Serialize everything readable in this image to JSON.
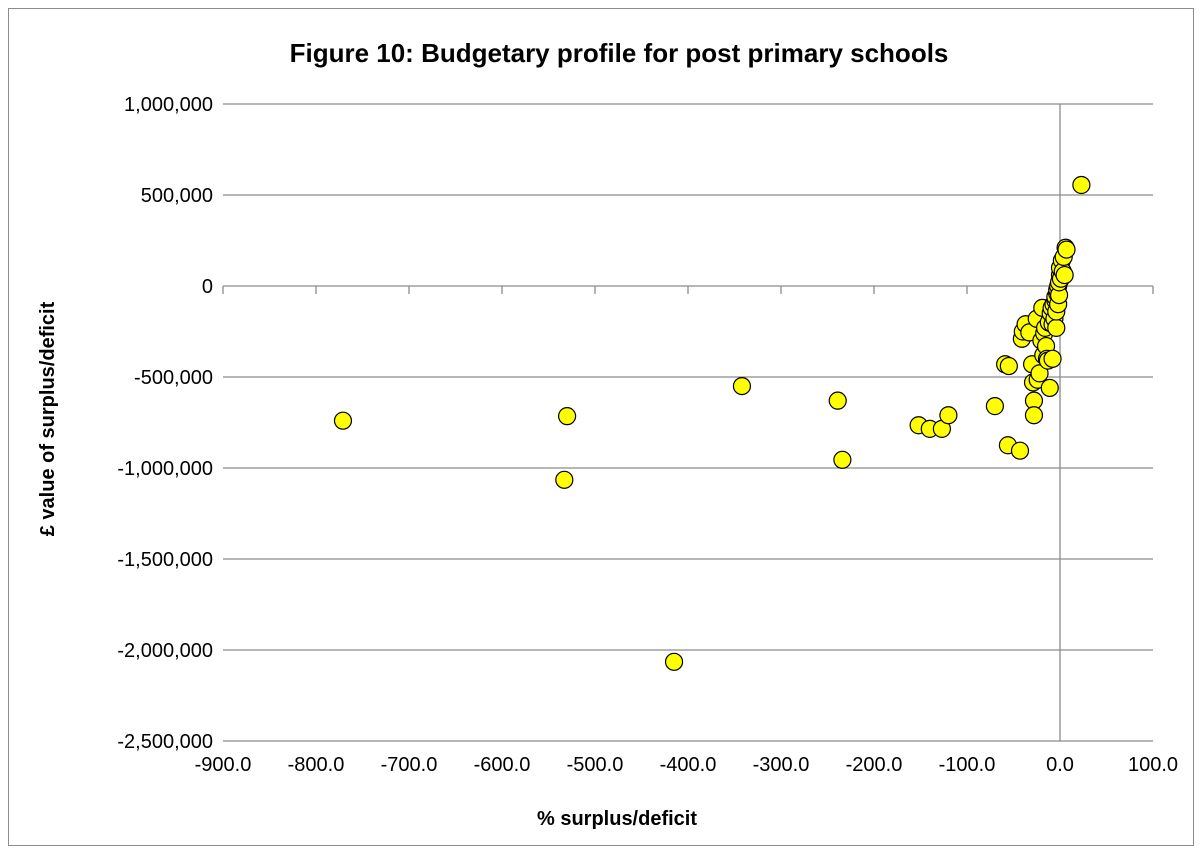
{
  "chart_data": {
    "type": "scatter",
    "title": "Figure 10: Budgetary profile for post primary schools",
    "xlabel": "% surplus/deficit",
    "ylabel": "£ value of surplus/deficit",
    "xlim": [
      -900,
      100
    ],
    "ylim": [
      -2500000,
      1000000
    ],
    "x_ticks": [
      -900,
      -800,
      -700,
      -600,
      -500,
      -400,
      -300,
      -200,
      -100,
      0,
      100
    ],
    "x_tick_labels": [
      "-900.0",
      "-800.0",
      "-700.0",
      "-600.0",
      "-500.0",
      "-400.0",
      "-300.0",
      "-200.0",
      "-100.0",
      "0.0",
      "100.0"
    ],
    "y_ticks": [
      1000000,
      500000,
      0,
      -500000,
      -1000000,
      -1500000,
      -2000000,
      -2500000
    ],
    "y_tick_labels": [
      "1,000,000",
      "500,000",
      "0",
      "-500,000",
      "-1,000,000",
      "-1,500,000",
      "-2,000,000",
      "-2,500,000"
    ],
    "grid": "horizontal",
    "legend": "none",
    "marker_color": "#ffff00",
    "marker_edge_color": "#000000",
    "series": [
      {
        "points": [
          [
            -771,
            -740000
          ],
          [
            -533,
            -1065000
          ],
          [
            -530,
            -715000
          ],
          [
            -415,
            -2065000
          ],
          [
            -342,
            -550000
          ],
          [
            -239,
            -630000
          ],
          [
            -234,
            -955000
          ],
          [
            -152,
            -765000
          ],
          [
            -140,
            -785000
          ],
          [
            -127,
            -785000
          ],
          [
            -120,
            -710000
          ],
          [
            -70,
            -660000
          ],
          [
            -59,
            -430000
          ],
          [
            -56,
            -875000
          ],
          [
            -55,
            -440000
          ],
          [
            -43,
            -905000
          ],
          [
            -41,
            -290000
          ],
          [
            -40,
            -250000
          ],
          [
            -37,
            -210000
          ],
          [
            -33,
            -255000
          ],
          [
            -30,
            -430000
          ],
          [
            -29,
            -530000
          ],
          [
            -28,
            -630000
          ],
          [
            -28,
            -710000
          ],
          [
            -25,
            -180000
          ],
          [
            -24,
            -515000
          ],
          [
            -22,
            -480000
          ],
          [
            -20,
            -300000
          ],
          [
            -19,
            -120000
          ],
          [
            -18,
            -380000
          ],
          [
            -17,
            -260000
          ],
          [
            -16,
            -230000
          ],
          [
            -15,
            -330000
          ],
          [
            -14,
            -400000
          ],
          [
            -13,
            -410000
          ],
          [
            -12,
            -200000
          ],
          [
            -11,
            -560000
          ],
          [
            -10,
            -150000
          ],
          [
            -9,
            -120000
          ],
          [
            -8,
            -400000
          ],
          [
            -8,
            -210000
          ],
          [
            -7,
            -100000
          ],
          [
            -6,
            -180000
          ],
          [
            -5,
            -80000
          ],
          [
            -5,
            -60000
          ],
          [
            -4,
            -230000
          ],
          [
            -4,
            -140000
          ],
          [
            -3,
            -40000
          ],
          [
            -3,
            -20000
          ],
          [
            -2,
            -100000
          ],
          [
            -2,
            0
          ],
          [
            -1,
            -50000
          ],
          [
            -1,
            20000
          ],
          [
            0,
            60000
          ],
          [
            0,
            100000
          ],
          [
            1,
            40000
          ],
          [
            2,
            140000
          ],
          [
            3,
            80000
          ],
          [
            4,
            160000
          ],
          [
            5,
            60000
          ],
          [
            6,
            210000
          ],
          [
            7,
            200000
          ],
          [
            23,
            555000
          ]
        ]
      }
    ]
  }
}
